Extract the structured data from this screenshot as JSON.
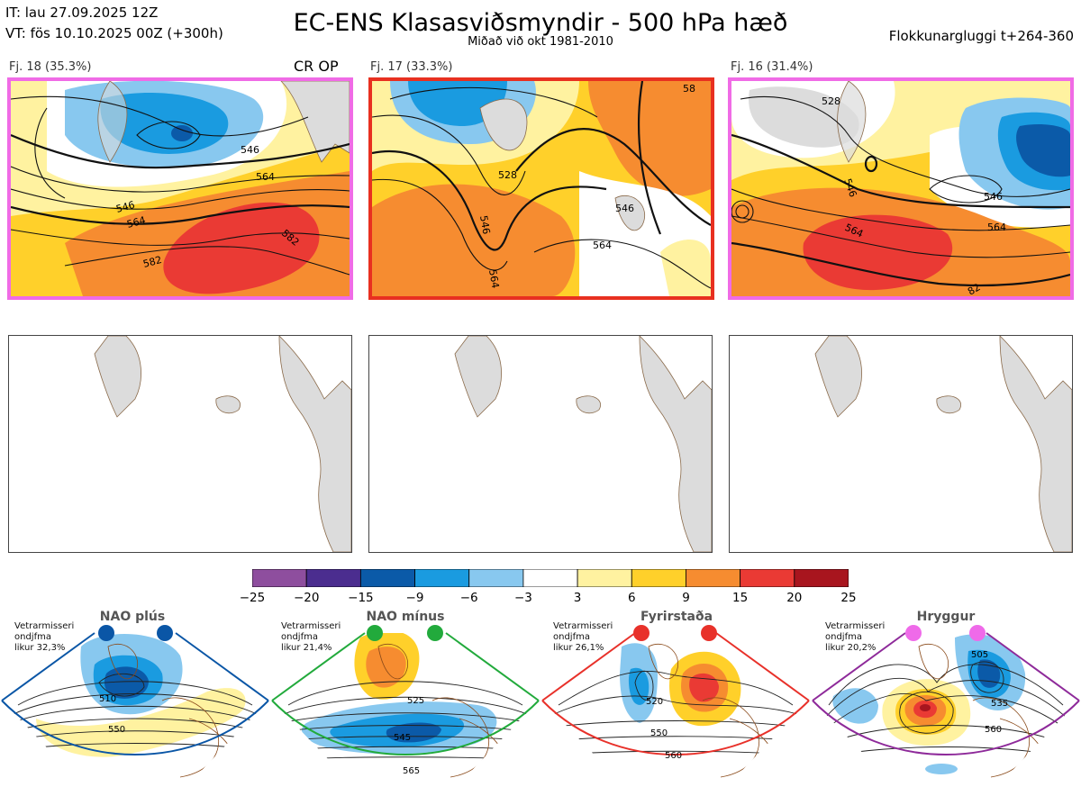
{
  "header": {
    "it_line": "IT: lau 27.09.2025 12Z",
    "vt_line": "VT: fös 10.10.2025 00Z  (+300h)",
    "title": "EC-ENS Klasasviðsmyndir - 500 hPa hæð",
    "subtitle": "Miðað við okt 1981-2010",
    "window": "Flokkunargluggi t+264-360"
  },
  "colors": {
    "frame_pink": "#f06be6",
    "frame_red": "#e83020",
    "land": "#dcdcdc",
    "coast": "#8a6a4a"
  },
  "clusters": [
    {
      "label": "Fj. 18 (35.3%)",
      "tag": "CR OP",
      "frame": "pink",
      "contour_labels": [
        "546",
        "546",
        "564",
        "564",
        "582",
        "582"
      ]
    },
    {
      "label": "Fj. 17 (33.3%)",
      "tag": "",
      "frame": "red",
      "contour_labels": [
        "528",
        "546",
        "546",
        "564",
        "564",
        "58"
      ]
    },
    {
      "label": "Fj. 16 (31.4%)",
      "tag": "",
      "frame": "pink",
      "contour_labels": [
        "528",
        "546",
        "546",
        "564",
        "564",
        "82"
      ]
    }
  ],
  "chart_data": {
    "type": "heatmap",
    "title": "EC-ENS Klasasviðsmyndir - 500 hPa hæð",
    "colorbar": {
      "ticks": [
        "−25",
        "−20",
        "−15",
        "−9",
        "−6",
        "−3",
        "3",
        "6",
        "9",
        "15",
        "20",
        "25"
      ],
      "bin_edges": [
        -25,
        -20,
        -15,
        -9,
        -6,
        -3,
        3,
        6,
        9,
        15,
        20,
        25
      ],
      "colors": [
        "#8e4e9e",
        "#4b2d8f",
        "#0b5aa8",
        "#1a9be0",
        "#88c8ef",
        "#ffffff",
        "#fff2a0",
        "#ffd02a",
        "#f68c30",
        "#ea3a34",
        "#a8151e"
      ]
    },
    "clusters": [
      {
        "name": "Fj. 18",
        "percent": 35.3
      },
      {
        "name": "Fj. 17",
        "percent": 33.3
      },
      {
        "name": "Fj. 16",
        "percent": 31.4
      }
    ],
    "regimes": [
      {
        "name": "NAO plús",
        "probability": "32,3%",
        "labels": [
          "510",
          "550"
        ]
      },
      {
        "name": "NAO mínus",
        "probability": "21,4%",
        "labels": [
          "525",
          "545",
          "565"
        ]
      },
      {
        "name": "Fyrirstaða",
        "probability": "26,1%",
        "labels": [
          "520",
          "550",
          "560"
        ]
      },
      {
        "name": "Hryggur",
        "probability": "20,2%",
        "labels": [
          "505",
          "535",
          "560"
        ]
      }
    ]
  },
  "regimes_ui": [
    {
      "info": [
        "Vetrarmisseri",
        "ondjfma",
        "likur 32,3%"
      ],
      "frame": "#0a56a6",
      "dot": "#0a56a6"
    },
    {
      "info": [
        "Vetrarmisseri",
        "ondjfma",
        "likur 21,4%"
      ],
      "frame": "#22aa3c",
      "dot": "#22aa3c"
    },
    {
      "info": [
        "Vetrarmisseri",
        "ondjfma",
        "likur 26,1%"
      ],
      "frame": "#e8312a",
      "dot": "#e8312a"
    },
    {
      "info": [
        "Vetrarmisseri",
        "ondjfma",
        "likur 20,2%"
      ],
      "frame": "#8e2a9a",
      "dot": "#ef6ae9"
    }
  ]
}
